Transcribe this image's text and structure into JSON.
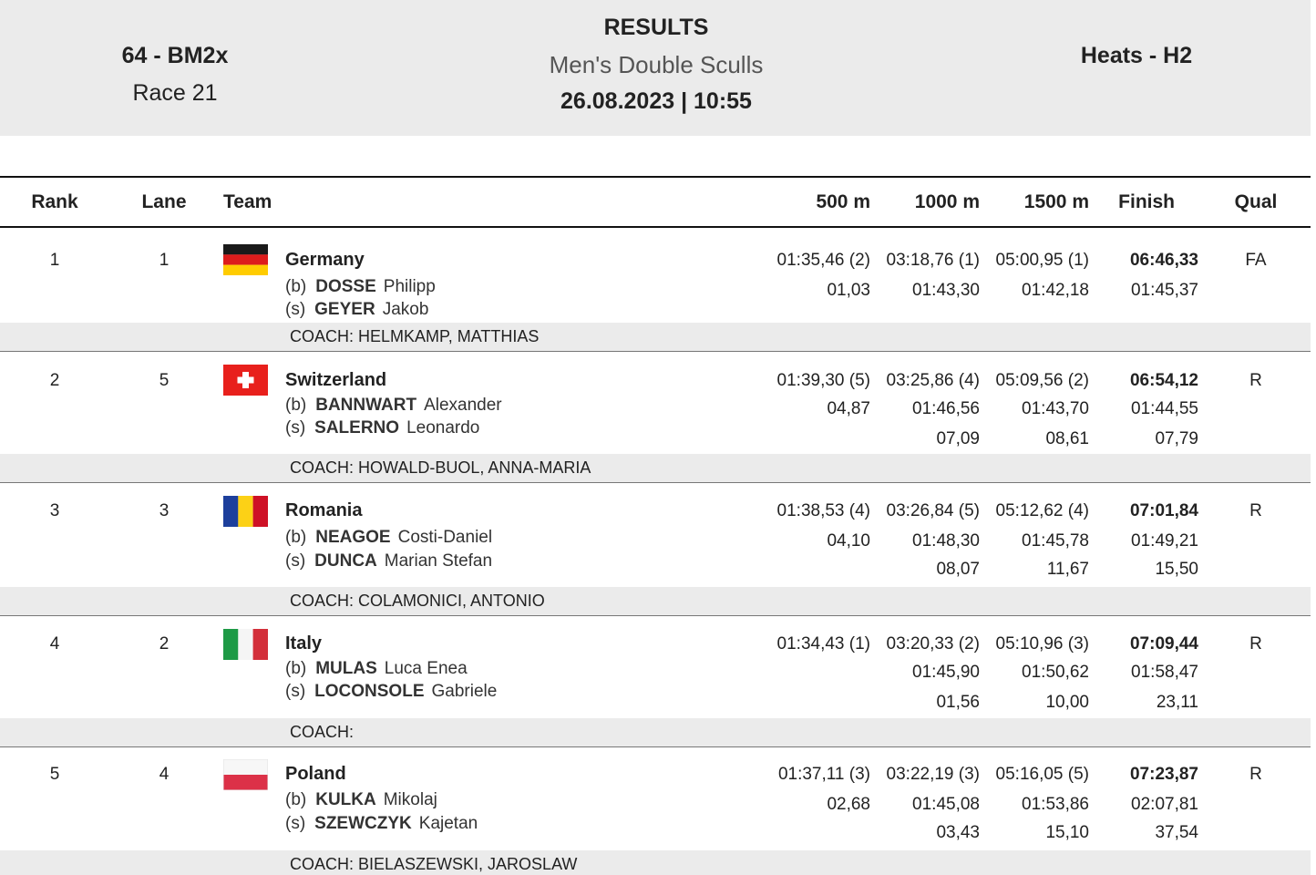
{
  "header": {
    "event": "64 - BM2x",
    "race": "Race 21",
    "title": "RESULTS",
    "subtitle": "Men's Double Sculls",
    "datetime": "26.08.2023 | 10:55",
    "phase": "Heats - H2"
  },
  "columns": {
    "rank": "Rank",
    "lane": "Lane",
    "team": "Team",
    "m500": "500 m",
    "m1000": "1000 m",
    "m1500": "1500 m",
    "finish": "Finish",
    "qual": "Qual"
  },
  "colors": {
    "header_bg": "#ebebeb",
    "coach_bg": "#ebebeb",
    "text": "#222222"
  },
  "rows": [
    {
      "rank": "1",
      "lane": "1",
      "team": "Germany",
      "flag": "germany-flag",
      "crew": [
        {
          "pos": "(b)",
          "surname": "DOSSE",
          "given": "Philipp"
        },
        {
          "pos": "(s)",
          "surname": "GEYER",
          "given": "Jakob"
        }
      ],
      "m500": "01:35,46 (2)",
      "m1000": "03:18,76 (1)",
      "m1500": "05:00,95 (1)",
      "finish": "06:46,33",
      "split500": "01,03",
      "split1000": "01:43,30",
      "split1500": "01:42,18",
      "splitfin": "01:45,37",
      "diff1000": "",
      "diff1500": "",
      "difffin": "",
      "qual": "FA",
      "coach": "COACH: HELMKAMP, MATTHIAS"
    },
    {
      "rank": "2",
      "lane": "5",
      "team": "Switzerland",
      "flag": "switzerland-flag",
      "crew": [
        {
          "pos": "(b)",
          "surname": "BANNWART",
          "given": "Alexander"
        },
        {
          "pos": "(s)",
          "surname": "SALERNO",
          "given": "Leonardo"
        }
      ],
      "m500": "01:39,30 (5)",
      "m1000": "03:25,86 (4)",
      "m1500": "05:09,56 (2)",
      "finish": "06:54,12",
      "split500": "04,87",
      "split1000": "01:46,56",
      "split1500": "01:43,70",
      "splitfin": "01:44,55",
      "diff1000": "07,09",
      "diff1500": "08,61",
      "difffin": "07,79",
      "qual": "R",
      "coach": "COACH: HOWALD-BUOL, ANNA-MARIA"
    },
    {
      "rank": "3",
      "lane": "3",
      "team": "Romania",
      "flag": "romania-flag",
      "crew": [
        {
          "pos": "(b)",
          "surname": "NEAGOE",
          "given": "Costi-Daniel"
        },
        {
          "pos": "(s)",
          "surname": "DUNCA",
          "given": "Marian Stefan"
        }
      ],
      "m500": "01:38,53 (4)",
      "m1000": "03:26,84 (5)",
      "m1500": "05:12,62 (4)",
      "finish": "07:01,84",
      "split500": "04,10",
      "split1000": "01:48,30",
      "split1500": "01:45,78",
      "splitfin": "01:49,21",
      "diff1000": "08,07",
      "diff1500": "11,67",
      "difffin": "15,50",
      "qual": "R",
      "coach": "COACH: COLAMONICI, ANTONIO"
    },
    {
      "rank": "4",
      "lane": "2",
      "team": "Italy",
      "flag": "italy-flag",
      "crew": [
        {
          "pos": "(b)",
          "surname": "MULAS",
          "given": "Luca Enea"
        },
        {
          "pos": "(s)",
          "surname": "LOCONSOLE",
          "given": "Gabriele"
        }
      ],
      "m500": "01:34,43 (1)",
      "m1000": "03:20,33 (2)",
      "m1500": "05:10,96 (3)",
      "finish": "07:09,44",
      "split500": "",
      "split1000": "01:45,90",
      "split1500": "01:50,62",
      "splitfin": "01:58,47",
      "diff1000": "01,56",
      "diff1500": "10,00",
      "difffin": "23,11",
      "qual": "R",
      "coach": "COACH:"
    },
    {
      "rank": "5",
      "lane": "4",
      "team": "Poland",
      "flag": "poland-flag",
      "crew": [
        {
          "pos": "(b)",
          "surname": "KULKA",
          "given": "Mikolaj"
        },
        {
          "pos": "(s)",
          "surname": "SZEWCZYK",
          "given": "Kajetan"
        }
      ],
      "m500": "01:37,11 (3)",
      "m1000": "03:22,19 (3)",
      "m1500": "05:16,05 (5)",
      "finish": "07:23,87",
      "split500": "02,68",
      "split1000": "01:45,08",
      "split1500": "01:53,86",
      "splitfin": "02:07,81",
      "diff1000": "03,43",
      "diff1500": "15,10",
      "difffin": "37,54",
      "qual": "R",
      "coach": "COACH: BIELASZEWSKI, JAROSLAW"
    }
  ]
}
